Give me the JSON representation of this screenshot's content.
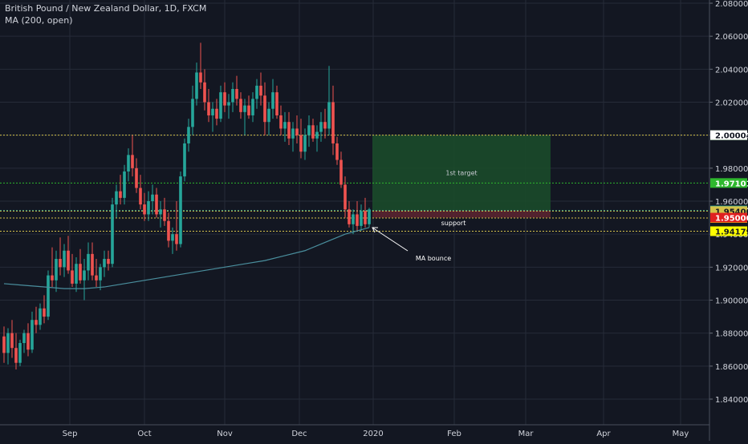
{
  "header": {
    "title": "British Pound / New Zealand Dollar, 1D, FXCM",
    "indicator": "MA (200, open)"
  },
  "colors": {
    "background": "#131722",
    "grid": "#262b38",
    "up": "#26a69a",
    "down": "#ef5350",
    "ma": "#4a8f9e",
    "text": "#d1d4dc",
    "target_zone": "#1b4d2a",
    "stop_zone": "#5a2330"
  },
  "chart_data": {
    "type": "candlestick",
    "symbol": "GBPNZD",
    "timeframe": "1D",
    "ylim": [
      1.83,
      2.08
    ],
    "y_ticks": [
      "2.08000",
      "2.06000",
      "2.04000",
      "2.02000",
      "2.00000",
      "1.98000",
      "1.96000",
      "1.94000",
      "1.92000",
      "1.90000",
      "1.88000",
      "1.86000",
      "1.84000"
    ],
    "x_ticks": [
      "Sep",
      "Oct",
      "Nov",
      "Dec",
      "2020",
      "Feb",
      "Mar",
      "Apr",
      "May"
    ],
    "candles": [
      [
        1.878,
        1.884,
        1.862,
        1.868
      ],
      [
        1.868,
        1.883,
        1.861,
        1.88
      ],
      [
        1.88,
        1.888,
        1.865,
        1.871
      ],
      [
        1.871,
        1.88,
        1.858,
        1.862
      ],
      [
        1.862,
        1.876,
        1.86,
        1.874
      ],
      [
        1.874,
        1.882,
        1.868,
        1.88
      ],
      [
        1.88,
        1.886,
        1.866,
        1.87
      ],
      [
        1.87,
        1.893,
        1.868,
        1.888
      ],
      [
        1.888,
        1.896,
        1.88,
        1.885
      ],
      [
        1.885,
        1.898,
        1.882,
        1.895
      ],
      [
        1.895,
        1.903,
        1.886,
        1.89
      ],
      [
        1.89,
        1.918,
        1.888,
        1.915
      ],
      [
        1.915,
        1.932,
        1.908,
        1.912
      ],
      [
        1.912,
        1.93,
        1.905,
        1.925
      ],
      [
        1.925,
        1.938,
        1.915,
        1.92
      ],
      [
        1.92,
        1.934,
        1.914,
        1.93
      ],
      [
        1.93,
        1.939,
        1.916,
        1.918
      ],
      [
        1.918,
        1.928,
        1.908,
        1.91
      ],
      [
        1.91,
        1.926,
        1.905,
        1.922
      ],
      [
        1.922,
        1.931,
        1.91,
        1.912
      ],
      [
        1.912,
        1.925,
        1.9,
        1.918
      ],
      [
        1.918,
        1.935,
        1.912,
        1.928
      ],
      [
        1.928,
        1.935,
        1.912,
        1.915
      ],
      [
        1.915,
        1.925,
        1.908,
        1.912
      ],
      [
        1.912,
        1.922,
        1.906,
        1.92
      ],
      [
        1.92,
        1.93,
        1.914,
        1.925
      ],
      [
        1.925,
        1.93,
        1.918,
        1.922
      ],
      [
        1.922,
        1.962,
        1.92,
        1.958
      ],
      [
        1.958,
        1.97,
        1.95,
        1.966
      ],
      [
        1.966,
        1.976,
        1.958,
        1.962
      ],
      [
        1.962,
        1.982,
        1.958,
        1.978
      ],
      [
        1.978,
        1.992,
        1.972,
        1.988
      ],
      [
        1.988,
        2.0,
        1.975,
        1.98
      ],
      [
        1.98,
        1.986,
        1.965,
        1.968
      ],
      [
        1.968,
        1.976,
        1.955,
        1.958
      ],
      [
        1.958,
        1.965,
        1.948,
        1.952
      ],
      [
        1.952,
        1.966,
        1.948,
        1.96
      ],
      [
        1.96,
        1.97,
        1.952,
        1.964
      ],
      [
        1.964,
        1.968,
        1.95,
        1.952
      ],
      [
        1.952,
        1.96,
        1.944,
        1.955
      ],
      [
        1.955,
        1.962,
        1.945,
        1.948
      ],
      [
        1.948,
        1.953,
        1.932,
        1.936
      ],
      [
        1.936,
        1.944,
        1.928,
        1.94
      ],
      [
        1.94,
        1.96,
        1.93,
        1.934
      ],
      [
        1.934,
        1.978,
        1.932,
        1.975
      ],
      [
        1.975,
        1.998,
        1.972,
        1.995
      ],
      [
        1.995,
        2.01,
        1.99,
        2.005
      ],
      [
        2.005,
        2.03,
        2.0,
        2.022
      ],
      [
        2.022,
        2.044,
        2.018,
        2.038
      ],
      [
        2.038,
        2.056,
        2.028,
        2.032
      ],
      [
        2.032,
        2.04,
        2.015,
        2.02
      ],
      [
        2.02,
        2.028,
        2.008,
        2.012
      ],
      [
        2.012,
        2.02,
        2.002,
        2.016
      ],
      [
        2.016,
        2.022,
        2.006,
        2.01
      ],
      [
        2.01,
        2.03,
        2.008,
        2.026
      ],
      [
        2.026,
        2.032,
        2.014,
        2.018
      ],
      [
        2.018,
        2.025,
        2.01,
        2.02
      ],
      [
        2.02,
        2.032,
        2.014,
        2.028
      ],
      [
        2.028,
        2.036,
        2.018,
        2.022
      ],
      [
        2.022,
        2.026,
        2.01,
        2.014
      ],
      [
        2.014,
        2.022,
        2.0,
        2.018
      ],
      [
        2.018,
        2.024,
        2.01,
        2.012
      ],
      [
        2.012,
        2.026,
        2.008,
        2.022
      ],
      [
        2.022,
        2.034,
        2.016,
        2.03
      ],
      [
        2.03,
        2.038,
        2.018,
        2.024
      ],
      [
        2.024,
        2.032,
        2.0,
        2.008
      ],
      [
        2.008,
        2.02,
        2.0,
        2.016
      ],
      [
        2.016,
        2.034,
        2.01,
        2.026
      ],
      [
        2.026,
        2.03,
        2.01,
        2.012
      ],
      [
        2.012,
        2.018,
        2.0,
        2.004
      ],
      [
        2.004,
        2.014,
        1.996,
        2.008
      ],
      [
        2.008,
        2.014,
        1.994,
        1.998
      ],
      [
        1.998,
        2.008,
        1.99,
        2.004
      ],
      [
        2.004,
        2.012,
        1.995,
        2.0
      ],
      [
        2.0,
        2.01,
        1.986,
        1.99
      ],
      [
        1.99,
        2.004,
        1.985,
        2.0
      ],
      [
        2.0,
        2.012,
        1.993,
        2.006
      ],
      [
        2.006,
        2.01,
        1.996,
        1.998
      ],
      [
        1.998,
        2.006,
        1.99,
        2.002
      ],
      [
        2.002,
        2.014,
        1.996,
        2.008
      ],
      [
        2.008,
        2.016,
        1.998,
        2.004
      ],
      [
        2.004,
        2.042,
        2.0,
        2.02
      ],
      [
        2.02,
        2.03,
        1.988,
        1.995
      ],
      [
        1.995,
        1.999,
        1.982,
        1.985
      ],
      [
        1.985,
        1.99,
        1.968,
        1.97
      ],
      [
        1.97,
        1.975,
        1.95,
        1.955
      ],
      [
        1.955,
        1.96,
        1.944,
        1.946
      ],
      [
        1.946,
        1.955,
        1.94,
        1.952
      ],
      [
        1.952,
        1.96,
        1.942,
        1.945
      ],
      [
        1.945,
        1.958,
        1.942,
        1.954
      ],
      [
        1.954,
        1.962,
        1.944,
        1.946
      ],
      [
        1.946,
        1.956,
        1.944,
        1.955
      ]
    ],
    "ma_200_open": [
      [
        0,
        1.91
      ],
      [
        5,
        1.909
      ],
      [
        10,
        1.908
      ],
      [
        15,
        1.907
      ],
      [
        20,
        1.907
      ],
      [
        25,
        1.908
      ],
      [
        30,
        1.91
      ],
      [
        35,
        1.912
      ],
      [
        40,
        1.914
      ],
      [
        45,
        1.916
      ],
      [
        50,
        1.918
      ],
      [
        55,
        1.92
      ],
      [
        60,
        1.922
      ],
      [
        65,
        1.924
      ],
      [
        70,
        1.927
      ],
      [
        75,
        1.93
      ],
      [
        80,
        1.935
      ],
      [
        85,
        1.94
      ],
      [
        88,
        1.942
      ],
      [
        91,
        1.944
      ]
    ],
    "levels": [
      {
        "value": "2.00000",
        "style": "dotted",
        "color": "#d4c24a",
        "label_bg": "#2eb82e",
        "label_fg": "#ffffff"
      },
      {
        "value": "1.97101",
        "style": "dotted",
        "color": "#2eb82e",
        "label_bg": "#2eb82e",
        "label_fg": "#ffffff"
      },
      {
        "value": "1.95437",
        "style": "dotted",
        "color": "#26a69a",
        "label_bg": "#26a69a",
        "label_fg": "#ffffff"
      },
      {
        "value": "1.95400",
        "style": "dotted",
        "color": "#d4c24a",
        "label_bg": "#d4c24a",
        "label_fg": "#131722"
      },
      {
        "value": "1.94980",
        "style": "dotted",
        "color": "#d4c24a",
        "label_bg": "#ffff00",
        "label_fg": "#131722"
      },
      {
        "value": "1.94179",
        "style": "dotted",
        "color": "#d4c24a",
        "label_bg": "#ffff00",
        "label_fg": "#131722"
      }
    ],
    "axis_labels_extra": [
      {
        "value": "2.00004",
        "bg": "#ffffff",
        "fg": "#131722"
      },
      {
        "value": "1.95000",
        "bg": "#e02020",
        "fg": "#ffffff"
      }
    ],
    "target_zone": {
      "label": "1st target",
      "top": 2.0,
      "bottom": 1.9544
    },
    "stop_zone": {
      "top": 1.9544,
      "bottom": 1.95
    },
    "annotations": [
      {
        "text": "support"
      },
      {
        "text": "MA bounce"
      }
    ]
  }
}
